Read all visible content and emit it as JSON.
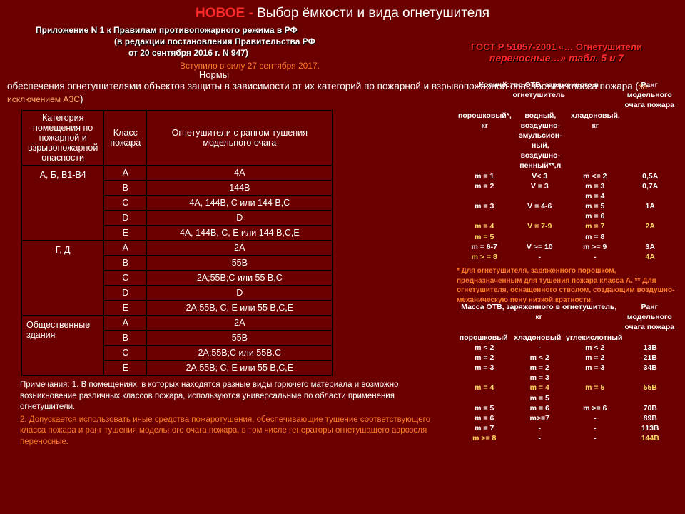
{
  "title": {
    "prefix": "НОВОЕ - ",
    "main": "Выбор ёмкости и вида огнетушителя"
  },
  "sub": {
    "l1": "Приложение N 1 к Правилам противопожарного  режима в  РФ",
    "l2": "(в  редакции  постановления  Правительства  РФ",
    "l3": "от 20 сентября 2016 г. N 947)"
  },
  "effect": "Вступило в силу  27 сентября 2017.",
  "norms_t": "Нормы",
  "norms": "обеспечения огнетушителями объектов защиты в зависимости от их категорий по пожарной и взрывопожарной опасности и класса пожара (",
  "norms_exc": "за исключением АЗС",
  "norms_close": ")",
  "gost": {
    "l1": "ГОСТ Р 51057-2001 «… Огнетушители",
    "l2": "переносные…» табл. 5 и 7"
  },
  "main_table": {
    "headers": [
      "Категория помещения по пожарной и взрывопожарной опасности",
      "Класс пожара",
      "Огнетушители с рангом тушения модельного очага"
    ],
    "groups": [
      {
        "cat": "А, Б, B1-B4",
        "rows": [
          [
            "А",
            "4А"
          ],
          [
            "В",
            "144В"
          ],
          [
            "С",
            "4А, 144В, С или 144 В,С"
          ],
          [
            "D",
            "D"
          ],
          [
            "Е",
            "4А, 144В, С, Е или 144 В,С,Е"
          ]
        ]
      },
      {
        "cat": "Г, Д",
        "rows": [
          [
            "А",
            "2А"
          ],
          [
            "В",
            "55В"
          ],
          [
            "С",
            "2А;55В;С или 55 В,С"
          ],
          [
            "D",
            "D"
          ],
          [
            "Е",
            "2А;55В, С, Е или 55 В,С,Е"
          ]
        ]
      },
      {
        "cat": "Общественные здания",
        "catAlign": "left",
        "rows": [
          [
            "А",
            "2А"
          ],
          [
            "В",
            "55В"
          ],
          [
            "С",
            "2А;55В;С или 55В.С"
          ],
          [
            "Е",
            "2А;55В; С, Е или 55 В,С,Е"
          ]
        ]
      }
    ]
  },
  "notes": {
    "n1": "Примечания: 1. В помещениях,  в которых  находятся  разные виды горючего материала и возможно возникновение  различных классов пожара, используются  универсальные по области применения огнетушители.",
    "n2": "2. Допускается  использовать  иные  средства  пожаротушения, обеспечивающие тушение соответствующего класса пожара  и  ранг  тушения модельного очага пожара, в том числе  генераторы огнетушащего  аэрозоля переносные."
  },
  "rb1": {
    "title_top": "Количество ОТВ, заряженного в огнетушитель",
    "title_right": "Ранг модельного очага пожара",
    "cols": [
      "порошковый*, кг",
      "водный, воздушно-эмульсион-ный, воздушно-пенный**,л",
      "хладоновый, кг",
      ""
    ],
    "rows": [
      {
        "c": [
          "m = 1",
          "V< 3",
          "m <= 2",
          "0,5А"
        ],
        "hl": false
      },
      {
        "c": [
          "m = 2",
          "V = 3",
          "m = 3",
          "0,7А"
        ],
        "hl": false
      },
      {
        "c": [
          "",
          "",
          "m = 4",
          ""
        ],
        "hl": false
      },
      {
        "c": [
          "m = 3",
          "V = 4-6",
          "m = 5",
          "1А"
        ],
        "hl": false
      },
      {
        "c": [
          "",
          "",
          "m = 6",
          ""
        ],
        "hl": false
      },
      {
        "c": [
          "m = 4",
          "V = 7-9",
          "m = 7",
          "2А"
        ],
        "hl": true
      },
      {
        "c": [
          "m = 5",
          "",
          "m = 8",
          ""
        ],
        "hl": true,
        "partial": [
          true,
          false,
          false,
          false
        ]
      },
      {
        "c": [
          "m = 6-7",
          "V >= 10",
          "m >= 9",
          "3А"
        ],
        "hl": false
      },
      {
        "c": [
          "m > = 8",
          "-",
          "-",
          "4А"
        ],
        "hl": true,
        "partial": [
          true,
          false,
          false,
          true
        ]
      }
    ],
    "foot": "* Для огнетушителя, заряженного порошком, предназначенным для тушения пожара класса А.\n** Для огнетушителя, оснащенного стволом, создающим воздушно-механическую пену низкой кратности."
  },
  "rb2": {
    "title_top": "Масса ОТВ, заряженного в огнетушитель, кг",
    "title_right": "Ранг модельного очага пожара",
    "cols": [
      "порошковый",
      "хладоновый",
      "углекислотный",
      ""
    ],
    "rows": [
      {
        "c": [
          "m < 2",
          "-",
          "m < 2",
          "13В"
        ],
        "hl": false
      },
      {
        "c": [
          "m = 2",
          "m < 2",
          "m = 2",
          "21В"
        ],
        "hl": false
      },
      {
        "c": [
          "m = 3",
          "m = 2",
          "m = 3",
          "34В"
        ],
        "hl": false
      },
      {
        "c": [
          "",
          "m = 3",
          "",
          ""
        ],
        "hl": false
      },
      {
        "c": [
          "m = 4",
          "m = 4",
          "m = 5",
          "55В"
        ],
        "hl": true
      },
      {
        "c": [
          "",
          "m = 5",
          "",
          ""
        ],
        "hl": false
      },
      {
        "c": [
          "m = 5",
          "m = 6",
          "m >= 6",
          "70В"
        ],
        "hl": false
      },
      {
        "c": [
          "m = 6",
          "m>=7",
          "-",
          "89В"
        ],
        "hl": false
      },
      {
        "c": [
          "m = 7",
          "-",
          "-",
          "113В"
        ],
        "hl": false
      },
      {
        "c": [
          "m >= 8",
          "-",
          "-",
          "144В"
        ],
        "hl": true,
        "partial": [
          true,
          false,
          false,
          true
        ]
      }
    ]
  },
  "colors": {
    "bg": "#6a0000",
    "accent": "#ff2a2a",
    "orange": "#ff7a2a",
    "yellow": "#ffd966"
  }
}
